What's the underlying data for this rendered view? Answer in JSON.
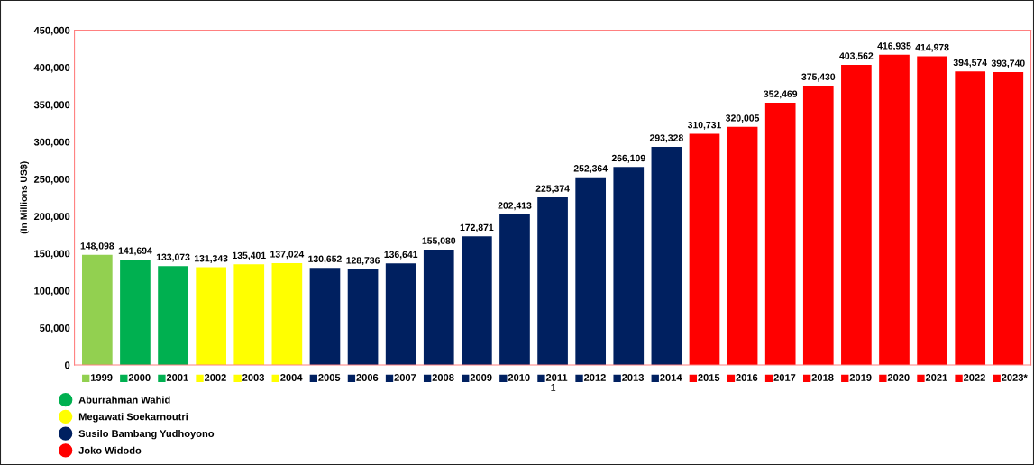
{
  "chart_data": {
    "type": "bar",
    "ylabel": "(In Millions US$)",
    "categories": [
      "1999",
      "2000",
      "2001",
      "2002",
      "2003",
      "2004",
      "2005",
      "2006",
      "2007",
      "2008",
      "2009",
      "2010",
      "2011",
      "2012",
      "2013",
      "2014",
      "2015",
      "2016",
      "2017",
      "2018",
      "2019",
      "2020",
      "2021",
      "2022",
      "2023*"
    ],
    "series": [
      {
        "color": "#92d050",
        "values": [
          148098,
          null,
          null,
          null,
          null,
          null,
          null,
          null,
          null,
          null,
          null,
          null,
          null,
          null,
          null,
          null,
          null,
          null,
          null,
          null,
          null,
          null,
          null,
          null,
          null
        ],
        "value_labels": [
          "148,098",
          null,
          null,
          null,
          null,
          null,
          null,
          null,
          null,
          null,
          null,
          null,
          null,
          null,
          null,
          null,
          null,
          null,
          null,
          null,
          null,
          null,
          null,
          null,
          null
        ]
      },
      {
        "name": "Aburrahman Wahid",
        "color": "#00b050",
        "values": [
          null,
          141694,
          133073,
          null,
          null,
          null,
          null,
          null,
          null,
          null,
          null,
          null,
          null,
          null,
          null,
          null,
          null,
          null,
          null,
          null,
          null,
          null,
          null,
          null,
          null
        ],
        "value_labels": [
          null,
          "141,694",
          "133,073",
          null,
          null,
          null,
          null,
          null,
          null,
          null,
          null,
          null,
          null,
          null,
          null,
          null,
          null,
          null,
          null,
          null,
          null,
          null,
          null,
          null,
          null
        ]
      },
      {
        "name": "Megawati Soekarnoutri",
        "color": "#ffff00",
        "values": [
          null,
          null,
          null,
          131343,
          135401,
          137024,
          null,
          null,
          null,
          null,
          null,
          null,
          null,
          null,
          null,
          null,
          null,
          null,
          null,
          null,
          null,
          null,
          null,
          null,
          null
        ],
        "value_labels": [
          null,
          null,
          null,
          "131,343",
          "135,401",
          "137,024",
          null,
          null,
          null,
          null,
          null,
          null,
          null,
          null,
          null,
          null,
          null,
          null,
          null,
          null,
          null,
          null,
          null,
          null,
          null
        ]
      },
      {
        "name": "Susilo Bambang Yudhoyono",
        "color": "#002060",
        "values": [
          null,
          null,
          null,
          null,
          null,
          null,
          130652,
          128736,
          136641,
          155080,
          172871,
          202413,
          225374,
          252364,
          266109,
          293328,
          null,
          null,
          null,
          null,
          null,
          null,
          null,
          null,
          null
        ],
        "value_labels": [
          null,
          null,
          null,
          null,
          null,
          null,
          "130,652",
          "128,736",
          "136,641",
          "155,080",
          "172,871",
          "202,413",
          "225,374",
          "252,364",
          "266,109",
          "293,328",
          null,
          null,
          null,
          null,
          null,
          null,
          null,
          null,
          null
        ]
      },
      {
        "name": "Joko Widodo",
        "color": "#ff0000",
        "values": [
          null,
          null,
          null,
          null,
          null,
          null,
          null,
          null,
          null,
          null,
          null,
          null,
          null,
          null,
          null,
          null,
          310731,
          320005,
          352469,
          375430,
          403562,
          416935,
          414978,
          394574,
          393740
        ],
        "value_labels": [
          null,
          null,
          null,
          null,
          null,
          null,
          null,
          null,
          null,
          null,
          null,
          null,
          null,
          null,
          null,
          null,
          "310,731",
          "320,005",
          "352,469",
          "375,430",
          "403,562",
          "416,935",
          "414,978",
          "394,574",
          "393,740"
        ]
      }
    ],
    "ylim": [
      0,
      450000
    ],
    "yticks": [
      {
        "value": 0,
        "label": "0"
      },
      {
        "value": 50000,
        "label": "50,000"
      },
      {
        "value": 100000,
        "label": "100,000"
      },
      {
        "value": 150000,
        "label": "150,000"
      },
      {
        "value": 200000,
        "label": "200,000"
      },
      {
        "value": 250000,
        "label": "250,000"
      },
      {
        "value": 300000,
        "label": "300,000"
      },
      {
        "value": 350000,
        "label": "350,000"
      },
      {
        "value": 400000,
        "label": "400,000"
      },
      {
        "value": 450000,
        "label": "450,000"
      }
    ],
    "grid": false,
    "legend": "bottom left",
    "annotations": [
      "1"
    ]
  }
}
